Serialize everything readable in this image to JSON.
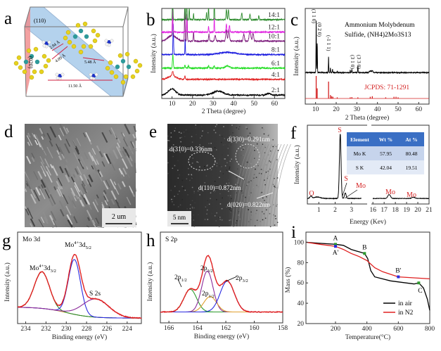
{
  "panels": {
    "a": {
      "label": "a",
      "plane1": "(110)",
      "plane2": "(020)",
      "d1": "2.94 Å",
      "d2": "4.09 Å",
      "d3": "5.48 Å",
      "d4": "11.50 Å"
    },
    "d": {
      "label": "d",
      "scale": "2 um"
    },
    "e": {
      "label": "e",
      "scale": "5 nm",
      "ann": [
        "d(310)=0.336nm",
        "d(330)=0.291nm",
        "d(110)=0.872nm",
        "d(020)=0.822nm"
      ]
    }
  },
  "chart_data": [
    {
      "id": "b",
      "label": "b",
      "type": "line",
      "xlabel": "2 Theta (degree)",
      "ylabel": "Intensity (a.u.)",
      "xlim": [
        5,
        65
      ],
      "ylim": [
        0,
        8
      ],
      "xticks": [
        10,
        20,
        30,
        40,
        50,
        60
      ],
      "series": [
        {
          "name": "2:1",
          "color": "#000000",
          "offset": 0.3,
          "peaks": [
            [
              10,
              0.55,
              1.8
            ],
            [
              32.5,
              0.35,
              2.5
            ],
            [
              57,
              0.15,
              1
            ]
          ]
        },
        {
          "name": "4:1",
          "color": "#e02020",
          "offset": 1.7,
          "peaks": [
            [
              10,
              0.3,
              2
            ],
            [
              10.3,
              0.45,
              0.3
            ],
            [
              16.3,
              0.35,
              0.15
            ]
          ]
        },
        {
          "name": "6:1",
          "color": "#22dd22",
          "offset": 2.7,
          "peaks": [
            [
              10.4,
              1.2,
              0.2
            ],
            [
              16.3,
              0.25,
              0.2
            ],
            [
              18,
              0.2,
              0.2
            ],
            [
              27.8,
              0.25,
              0.2
            ],
            [
              30.5,
              0.2,
              0.2
            ],
            [
              37,
              0.2,
              1
            ]
          ]
        },
        {
          "name": "8:1",
          "color": "#1a1adf",
          "offset": 3.9,
          "peaks": [
            [
              10.6,
              2.8,
              0.15
            ],
            [
              16.4,
              1.4,
              0.12
            ],
            [
              37,
              0.2,
              4
            ]
          ]
        },
        {
          "name": "10:1",
          "color": "#7b1a7b",
          "offset": 5.1,
          "peaks": [
            [
              10,
              0.5,
              2
            ],
            [
              10.3,
              2.5,
              0.15
            ],
            [
              16.2,
              3,
              0.15
            ],
            [
              17.3,
              2.5,
              0.15
            ],
            [
              20.5,
              0.8,
              0.15
            ],
            [
              28,
              0.6,
              0.2
            ],
            [
              31,
              0.5,
              0.3
            ],
            [
              36.5,
              1,
              0.3
            ],
            [
              37.7,
              1,
              0.3
            ],
            [
              45,
              0.6,
              0.3
            ],
            [
              48,
              0.9,
              0.4
            ],
            [
              49.5,
              0.7,
              0.3
            ]
          ]
        },
        {
          "name": "12:1",
          "color": "#e020e0",
          "offset": 5.9,
          "peaks": [
            [
              10.3,
              2,
              0.15
            ],
            [
              17.2,
              1.5,
              0.12
            ],
            [
              27.8,
              0.5,
              0.15
            ],
            [
              30.6,
              1.3,
              0.12
            ],
            [
              36.5,
              0.7,
              0.2
            ],
            [
              38,
              0.6,
              0.2
            ]
          ]
        },
        {
          "name": "14:1",
          "color": "#2b8a2b",
          "offset": 7.0,
          "peaks": [
            [
              10.3,
              2.5,
              0.15
            ],
            [
              16.3,
              2.5,
              0.12
            ],
            [
              17.2,
              2,
              0.12
            ],
            [
              18.4,
              1.3,
              0.12
            ],
            [
              20.5,
              0.6,
              0.12
            ],
            [
              26.8,
              0.7,
              0.12
            ],
            [
              27.8,
              1.3,
              0.12
            ],
            [
              30.6,
              2.1,
              0.12
            ],
            [
              36.5,
              0.9,
              0.2
            ],
            [
              37.5,
              0.9,
              0.2
            ],
            [
              44,
              0.6,
              0.2
            ],
            [
              48,
              0.5,
              0.2
            ],
            [
              52.3,
              0.4,
              0.15
            ]
          ]
        }
      ]
    },
    {
      "id": "c",
      "label": "c",
      "type": "line",
      "xlabel": "2 Theta (degree)",
      "ylabel": "Intensity (a.u.)",
      "xlim": [
        5,
        65
      ],
      "ylim": [
        0,
        8.5
      ],
      "xticks": [
        10,
        20,
        30,
        40,
        50,
        60
      ],
      "title_line1": "Ammonium Molybdenum",
      "title_line2": "Sulfide, (NH4)2Mo3S13",
      "reference_label": "JCPDS: 71-1291",
      "sample": {
        "color": "#000000",
        "offset": 2.8,
        "peaks": [
          [
            10.3,
            4.6,
            0.1
          ],
          [
            10.8,
            2.6,
            0.1
          ],
          [
            16.3,
            1.4,
            0.1
          ],
          [
            17.2,
            0.4,
            0.1
          ],
          [
            18.2,
            0.3,
            0.1
          ],
          [
            20.5,
            0.15,
            0.1
          ],
          [
            26.8,
            0.2,
            0.1
          ],
          [
            27.6,
            0.3,
            0.1
          ],
          [
            30.5,
            0.6,
            0.1
          ],
          [
            36.5,
            0.15,
            0.4
          ],
          [
            37.5,
            0.15,
            0.3
          ]
        ]
      },
      "reference": {
        "color": "#d42020",
        "offset": 0.5,
        "sticks": [
          [
            10.3,
            2
          ],
          [
            10.8,
            0.9
          ],
          [
            16.3,
            1.5
          ],
          [
            17.2,
            0.3
          ],
          [
            17.8,
            0.2
          ],
          [
            18.4,
            0.15
          ],
          [
            20.5,
            0.1
          ],
          [
            26.8,
            0.1
          ],
          [
            27.6,
            0.12
          ],
          [
            30.5,
            0.1
          ],
          [
            36.5,
            0.15
          ],
          [
            37.5,
            0.2
          ],
          [
            44,
            0.1
          ],
          [
            48,
            0.15
          ],
          [
            49,
            0.15
          ],
          [
            50,
            0.1
          ]
        ]
      },
      "peak_labels": [
        {
          "x": 10.3,
          "text": "(1 1 0)"
        },
        {
          "x": 10.8,
          "text": "(0 2 0)"
        },
        {
          "x": 16.3,
          "text": "(-1 1 1)"
        },
        {
          "x": 27.6,
          "text": "(3 1 0)"
        },
        {
          "x": 30.5,
          "text": "(3 3 0)"
        }
      ]
    },
    {
      "id": "f",
      "label": "f",
      "type": "line",
      "xlabel": "Energy (Kev)",
      "ylabel": "Intensity (a.u.)",
      "xlim_left": [
        0.3,
        4.0
      ],
      "xlim_right": [
        15.8,
        21
      ],
      "ylim": [
        0,
        100
      ],
      "xticks": [
        1,
        2,
        3,
        16,
        17,
        18,
        19,
        20,
        21
      ],
      "peaks": [
        [
          0.52,
          3,
          0.06
        ],
        [
          0.9,
          1.8,
          0.2
        ],
        [
          2.31,
          82,
          0.05
        ],
        [
          2.62,
          7,
          0.05
        ],
        [
          17.45,
          5,
          0.12
        ],
        [
          19.6,
          1.5,
          0.15
        ]
      ],
      "baseline": 7,
      "peak_labels": [
        {
          "x": 0.5,
          "text": "O"
        },
        {
          "x": 2.31,
          "text": "S"
        },
        {
          "x": 2.62,
          "text": "S"
        },
        {
          "x": 2.7,
          "text": "Mo"
        },
        {
          "x": 17.45,
          "text": "Mo"
        },
        {
          "x": 19.6,
          "text": "Mo"
        }
      ],
      "table": {
        "headers": [
          "Element",
          "Wt %",
          "At %"
        ],
        "rows": [
          [
            "Mo K",
            "57.95",
            "80.48"
          ],
          [
            "S K",
            "42.04",
            "19.51"
          ]
        ]
      }
    },
    {
      "id": "g",
      "label": "g",
      "type": "line",
      "xlabel": "Binding energy (eV)",
      "ylabel": "Intensity (a.u.)",
      "title": "Mo 3d",
      "xlim": [
        234.8,
        222.6
      ],
      "ylim": [
        0,
        100
      ],
      "xticks": [
        234,
        232,
        230,
        228,
        226,
        224
      ],
      "components": [
        {
          "name": "Mo4+ 3d3/2",
          "color": "#2d8a2d",
          "center": 232.4,
          "amp": 40,
          "sigma": 0.75
        },
        {
          "name": "Mo4+ 3d5/2",
          "color": "#2a2ae0",
          "center": 229.2,
          "amp": 60,
          "sigma": 0.6
        },
        {
          "name": "S 2s",
          "color": "#8a2a9a",
          "center": 227.1,
          "amp": 20,
          "sigma": 1.3
        }
      ],
      "background_color": "#c8a030",
      "envelope_color": "#e02020",
      "annotations": [
        {
          "text": "Mo",
          "sup": "4+",
          "main": "3d",
          "sub": "3/2"
        },
        {
          "text": "Mo",
          "sup": "4+",
          "main": "3d",
          "sub": "5/2"
        },
        {
          "text": "S 2s"
        }
      ]
    },
    {
      "id": "h",
      "label": "h",
      "type": "line",
      "xlabel": "Binding energy (eV)",
      "ylabel": "Intensity (a.u.)",
      "title": "S 2p",
      "xlim": [
        166.6,
        158
      ],
      "ylim": [
        0,
        100
      ],
      "xticks": [
        166,
        164,
        162,
        160,
        158
      ],
      "components": [
        {
          "name": "2p1/2",
          "color": "#2d9a2d",
          "center": 164.5,
          "amp": 25,
          "sigma": 0.45
        },
        {
          "name": "2p3/2",
          "color": "#8a2a9a",
          "center": 163.3,
          "amp": 45,
          "sigma": 0.4
        },
        {
          "name": "2p1/2",
          "color": "#e0a030",
          "center": 163.1,
          "amp": 17,
          "sigma": 0.45
        },
        {
          "name": "2p3/2",
          "color": "#2a2ae0",
          "center": 161.9,
          "amp": 34,
          "sigma": 0.5
        }
      ],
      "baseline": 12,
      "envelope_color": "#e02020",
      "annotations": [
        {
          "main": "2p",
          "sub": "1/2"
        },
        {
          "main": "2p",
          "sub": "3/2"
        },
        {
          "main": "2p",
          "sub": "1/2"
        },
        {
          "main": "2p",
          "sub": "3/2"
        }
      ]
    },
    {
      "id": "i",
      "label": "i",
      "type": "line",
      "xlabel": "Temperature(°C)",
      "ylabel": "Mass (%)",
      "xlim": [
        12,
        800
      ],
      "ylim": [
        20,
        110
      ],
      "xticks": [
        200,
        400,
        600,
        800
      ],
      "yticks": [
        20,
        40,
        60,
        80,
        100
      ],
      "series": [
        {
          "name": "in air",
          "color": "#000000",
          "x": [
            12,
            100,
            200,
            250,
            300,
            385,
            405,
            425,
            450,
            550,
            700,
            730,
            760,
            785,
            800
          ],
          "y": [
            100,
            99,
            98,
            97,
            93,
            89,
            84,
            72,
            66,
            62,
            59,
            60,
            55,
            44,
            33
          ]
        },
        {
          "name": "in N2",
          "color": "#e02020",
          "x": [
            12,
            100,
            200,
            250,
            300,
            350,
            400,
            450,
            500,
            600,
            700,
            800
          ],
          "y": [
            100,
            98,
            96,
            93,
            89,
            86,
            82,
            75,
            71,
            66,
            65,
            64
          ]
        }
      ],
      "markers": [
        {
          "text": "A",
          "x": 200,
          "y": 98,
          "color": "#2d9a2d"
        },
        {
          "text": "A'",
          "x": 200,
          "y": 96,
          "color": "#2a2ae0"
        },
        {
          "text": "B",
          "x": 385,
          "y": 89,
          "color": "#2d9a2d"
        },
        {
          "text": "B'",
          "x": 600,
          "y": 66,
          "color": "#2a2ae0"
        },
        {
          "text": "C",
          "x": 730,
          "y": 60,
          "color": "#2d9a2d"
        }
      ],
      "legend": [
        "in air",
        "in N2"
      ],
      "legend_position": "bottom-right"
    }
  ]
}
